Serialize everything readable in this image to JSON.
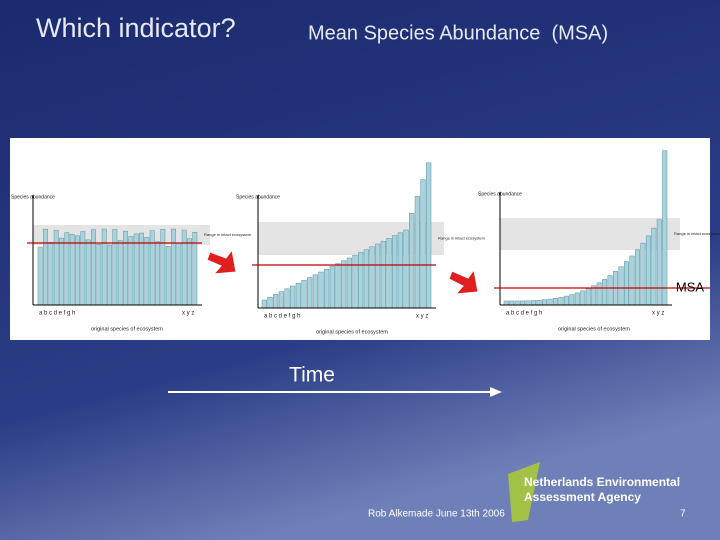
{
  "slide": {
    "title": "Which indicator?",
    "subtitle": "Mean Species Abundance  (MSA)",
    "time_label": "Time",
    "footer": "Rob Alkemade June 13th 2006",
    "page_number": "7",
    "logo": [
      "Netherlands Environmental",
      "Assessment Agency"
    ]
  },
  "figure": {
    "msa_label": "MSA",
    "panels": [
      {
        "y_axis": "Species abundance",
        "range_label": "Range in intact ecosystem",
        "x_start": "a b c d e f g h",
        "x_end": "x y z",
        "x_axis": "original species of ecosystem"
      },
      {
        "y_axis": "Species abundance",
        "range_label": "Range in intact ecosystem",
        "x_start": "a b c d e f g h",
        "x_end": "x y z",
        "x_axis": "original species of ecosystem"
      },
      {
        "y_axis": "Species abundance",
        "range_label": "Range in intact ecosystem",
        "x_start": "a b c d e f g h",
        "x_end": "x y z",
        "x_axis": "original species of ecosystem"
      }
    ]
  }
}
